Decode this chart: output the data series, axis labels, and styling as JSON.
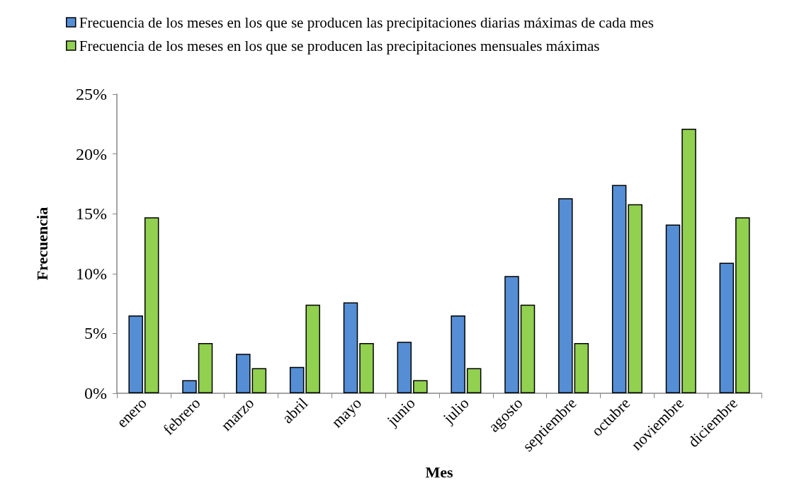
{
  "chart_data": {
    "type": "bar",
    "xlabel": "Mes",
    "ylabel": "Frecuencia",
    "categories": [
      "enero",
      "febrero",
      "marzo",
      "abril",
      "mayo",
      "junio",
      "julio",
      "agosto",
      "septiembre",
      "octubre",
      "noviembre",
      "diciembre"
    ],
    "series": [
      {
        "name": "Frecuencia de los meses en los que se producen las precipitaciones diarias máximas de cada mes",
        "color": "#558ed5",
        "values": [
          6.5,
          1.1,
          3.3,
          2.2,
          7.6,
          4.3,
          6.5,
          9.8,
          16.3,
          17.4,
          14.1,
          10.9
        ]
      },
      {
        "name": "Frecuencia de los meses en los que se producen las precipitaciones mensuales máximas",
        "color": "#92d050",
        "values": [
          14.7,
          4.2,
          2.1,
          7.4,
          4.2,
          1.1,
          2.1,
          7.4,
          4.2,
          15.8,
          22.1,
          14.7
        ]
      }
    ],
    "ylim": [
      0,
      25
    ],
    "yticks": [
      {
        "value": 0,
        "label": "0%"
      },
      {
        "value": 5,
        "label": "5%"
      },
      {
        "value": 10,
        "label": "10%"
      },
      {
        "value": 15,
        "label": "15%"
      },
      {
        "value": 20,
        "label": "20%"
      },
      {
        "value": 25,
        "label": "25%"
      }
    ],
    "grid": false,
    "legend": "top"
  }
}
